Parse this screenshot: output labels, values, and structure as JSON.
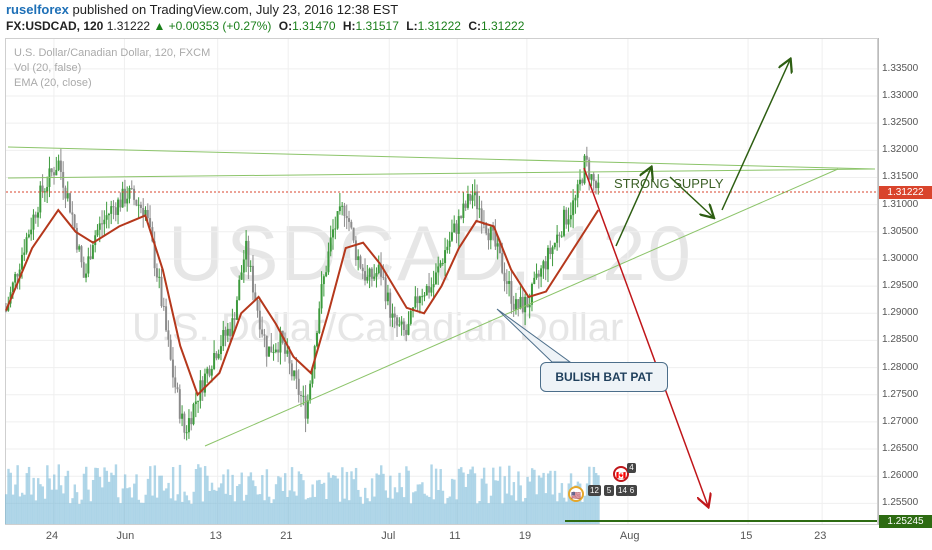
{
  "header": {
    "author": "ruselforex",
    "published_text": "published on TradingView.com, July 23, 2016 12:38 EST",
    "symbol": "FX:USDCAD, 120",
    "last": "1.31222",
    "change_arrow": "▲",
    "change": "+0.00353 (+0.27%)",
    "o_label": "O:",
    "o_val": "1.31470",
    "h_label": "H:",
    "h_val": "1.31517",
    "l_label": "L:",
    "l_val": "1.31222",
    "c_label": "C:",
    "c_val": "1.31222"
  },
  "legend": {
    "title": "U.S. Dollar/Canadian Dollar, 120, FXCM",
    "vol": "Vol (20, false)",
    "ema": "EMA (20, close)"
  },
  "watermark": {
    "symbol": "USDCAD, 120",
    "name": "U.S. Dollar/Canadian Dollar"
  },
  "annotations": {
    "callout": "BULISH BAT PAT",
    "supply": "STRONG SUPPLY"
  },
  "price_tags": {
    "current": "1.31222",
    "level": "1.25245"
  },
  "events": {
    "flag_ca": "🇨🇦",
    "badge_4": "4",
    "flag_us": "🇺🇸",
    "badge_12": "12",
    "badge_5": "5",
    "badge_14": "14",
    "badge_6": "6"
  },
  "colors": {
    "bull": "#3d9a3d",
    "bear": "#8b8b8b",
    "ema": "#b5381c",
    "trend": "#8cc46a",
    "arrow_red": "#c0161a",
    "arrow_green": "#2d5e12",
    "vol": "#6fb4d6"
  },
  "chart_data": {
    "type": "candlestick",
    "symbol": "FX:USDCAD",
    "timeframe": "120",
    "x_ticks": [
      "24",
      "Jun",
      "13",
      "21",
      "Jul",
      "11",
      "19",
      "Aug",
      "15",
      "23"
    ],
    "y_ticks": [
      "1.33500",
      "1.33000",
      "1.32500",
      "1.32000",
      "1.31500",
      "1.31000",
      "1.30500",
      "1.30000",
      "1.29500",
      "1.29000",
      "1.28500",
      "1.28000",
      "1.27500",
      "1.27000",
      "1.26500",
      "1.26000",
      "1.25500"
    ],
    "ylim": [
      1.2512,
      1.3405
    ],
    "close_path": [
      [
        0,
        1.2905
      ],
      [
        0.02,
        1.302
      ],
      [
        0.04,
        1.312
      ],
      [
        0.06,
        1.318
      ],
      [
        0.075,
        1.309
      ],
      [
        0.09,
        1.296
      ],
      [
        0.1,
        1.304
      ],
      [
        0.12,
        1.309
      ],
      [
        0.14,
        1.312
      ],
      [
        0.16,
        1.309
      ],
      [
        0.175,
        1.296
      ],
      [
        0.19,
        1.28
      ],
      [
        0.205,
        1.268
      ],
      [
        0.22,
        1.275
      ],
      [
        0.24,
        1.283
      ],
      [
        0.26,
        1.288
      ],
      [
        0.275,
        1.302
      ],
      [
        0.29,
        1.29
      ],
      [
        0.3,
        1.283
      ],
      [
        0.315,
        1.285
      ],
      [
        0.33,
        1.278
      ],
      [
        0.345,
        1.272
      ],
      [
        0.36,
        1.292
      ],
      [
        0.375,
        1.305
      ],
      [
        0.39,
        1.31
      ],
      [
        0.4,
        1.302
      ],
      [
        0.415,
        1.296
      ],
      [
        0.43,
        1.298
      ],
      [
        0.445,
        1.288
      ],
      [
        0.46,
        1.286
      ],
      [
        0.475,
        1.294
      ],
      [
        0.49,
        1.295
      ],
      [
        0.505,
        1.302
      ],
      [
        0.52,
        1.307
      ],
      [
        0.535,
        1.312
      ],
      [
        0.545,
        1.309
      ],
      [
        0.56,
        1.303
      ],
      [
        0.575,
        1.296
      ],
      [
        0.585,
        1.291
      ],
      [
        0.6,
        1.292
      ],
      [
        0.615,
        1.298
      ],
      [
        0.63,
        1.303
      ],
      [
        0.64,
        1.307
      ],
      [
        0.655,
        1.311
      ],
      [
        0.665,
        1.318
      ],
      [
        0.672,
        1.315
      ],
      [
        0.68,
        1.3122
      ]
    ],
    "ema_path": [
      [
        0,
        1.2905
      ],
      [
        0.03,
        1.302
      ],
      [
        0.06,
        1.309
      ],
      [
        0.08,
        1.305
      ],
      [
        0.1,
        1.303
      ],
      [
        0.13,
        1.306
      ],
      [
        0.16,
        1.308
      ],
      [
        0.18,
        1.298
      ],
      [
        0.2,
        1.284
      ],
      [
        0.22,
        1.275
      ],
      [
        0.245,
        1.279
      ],
      [
        0.27,
        1.29
      ],
      [
        0.29,
        1.293
      ],
      [
        0.31,
        1.288
      ],
      [
        0.33,
        1.282
      ],
      [
        0.35,
        1.279
      ],
      [
        0.37,
        1.29
      ],
      [
        0.39,
        1.302
      ],
      [
        0.41,
        1.303
      ],
      [
        0.43,
        1.299
      ],
      [
        0.46,
        1.291
      ],
      [
        0.48,
        1.29
      ],
      [
        0.5,
        1.295
      ],
      [
        0.52,
        1.302
      ],
      [
        0.54,
        1.307
      ],
      [
        0.56,
        1.306
      ],
      [
        0.58,
        1.298
      ],
      [
        0.6,
        1.293
      ],
      [
        0.62,
        1.294
      ],
      [
        0.64,
        1.299
      ],
      [
        0.66,
        1.304
      ],
      [
        0.68,
        1.309
      ]
    ]
  }
}
